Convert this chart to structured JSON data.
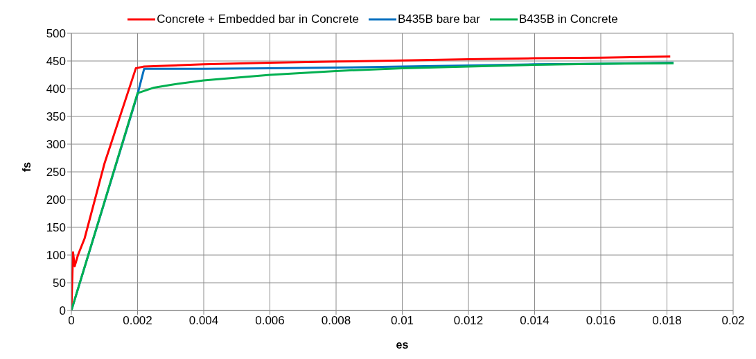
{
  "chart_data": {
    "type": "line",
    "xlabel": "es",
    "ylabel": "fs",
    "xlim": [
      0,
      0.02
    ],
    "ylim": [
      0,
      500
    ],
    "xticks": [
      0,
      0.002,
      0.004,
      0.006,
      0.008,
      0.01,
      0.012,
      0.014,
      0.016,
      0.018,
      0.02
    ],
    "yticks": [
      0,
      50,
      100,
      150,
      200,
      250,
      300,
      350,
      400,
      450,
      500
    ],
    "grid": true,
    "legend": "top",
    "marker": "none",
    "line_style": "solid",
    "series": [
      {
        "name": "Concrete + Embedded bar in Concrete",
        "color": "#ff0000",
        "x": [
          0,
          5e-05,
          0.0001,
          0.0002,
          0.0004,
          0.001,
          0.00195,
          0.0022,
          0.004,
          0.006,
          0.008,
          0.01,
          0.012,
          0.014,
          0.016,
          0.0181
        ],
        "values": [
          0,
          105,
          80,
          100,
          130,
          265,
          437,
          440,
          444,
          447,
          449,
          451,
          453,
          455,
          456,
          458
        ]
      },
      {
        "name": "B435B bare bar",
        "color": "#0070c0",
        "x": [
          0,
          0.002,
          0.0022,
          0.004,
          0.006,
          0.008,
          0.01,
          0.012,
          0.014,
          0.016,
          0.0182
        ],
        "values": [
          0,
          390,
          436,
          436,
          437,
          438,
          440,
          442,
          444,
          445,
          447
        ]
      },
      {
        "name": "B435B in Concrete",
        "color": "#00b050",
        "x": [
          0,
          0.002,
          0.0025,
          0.003,
          0.004,
          0.006,
          0.008,
          0.01,
          0.012,
          0.014,
          0.016,
          0.0182
        ],
        "values": [
          0,
          392,
          402,
          407,
          415,
          425,
          432,
          437,
          440,
          443,
          445,
          446
        ]
      }
    ]
  }
}
